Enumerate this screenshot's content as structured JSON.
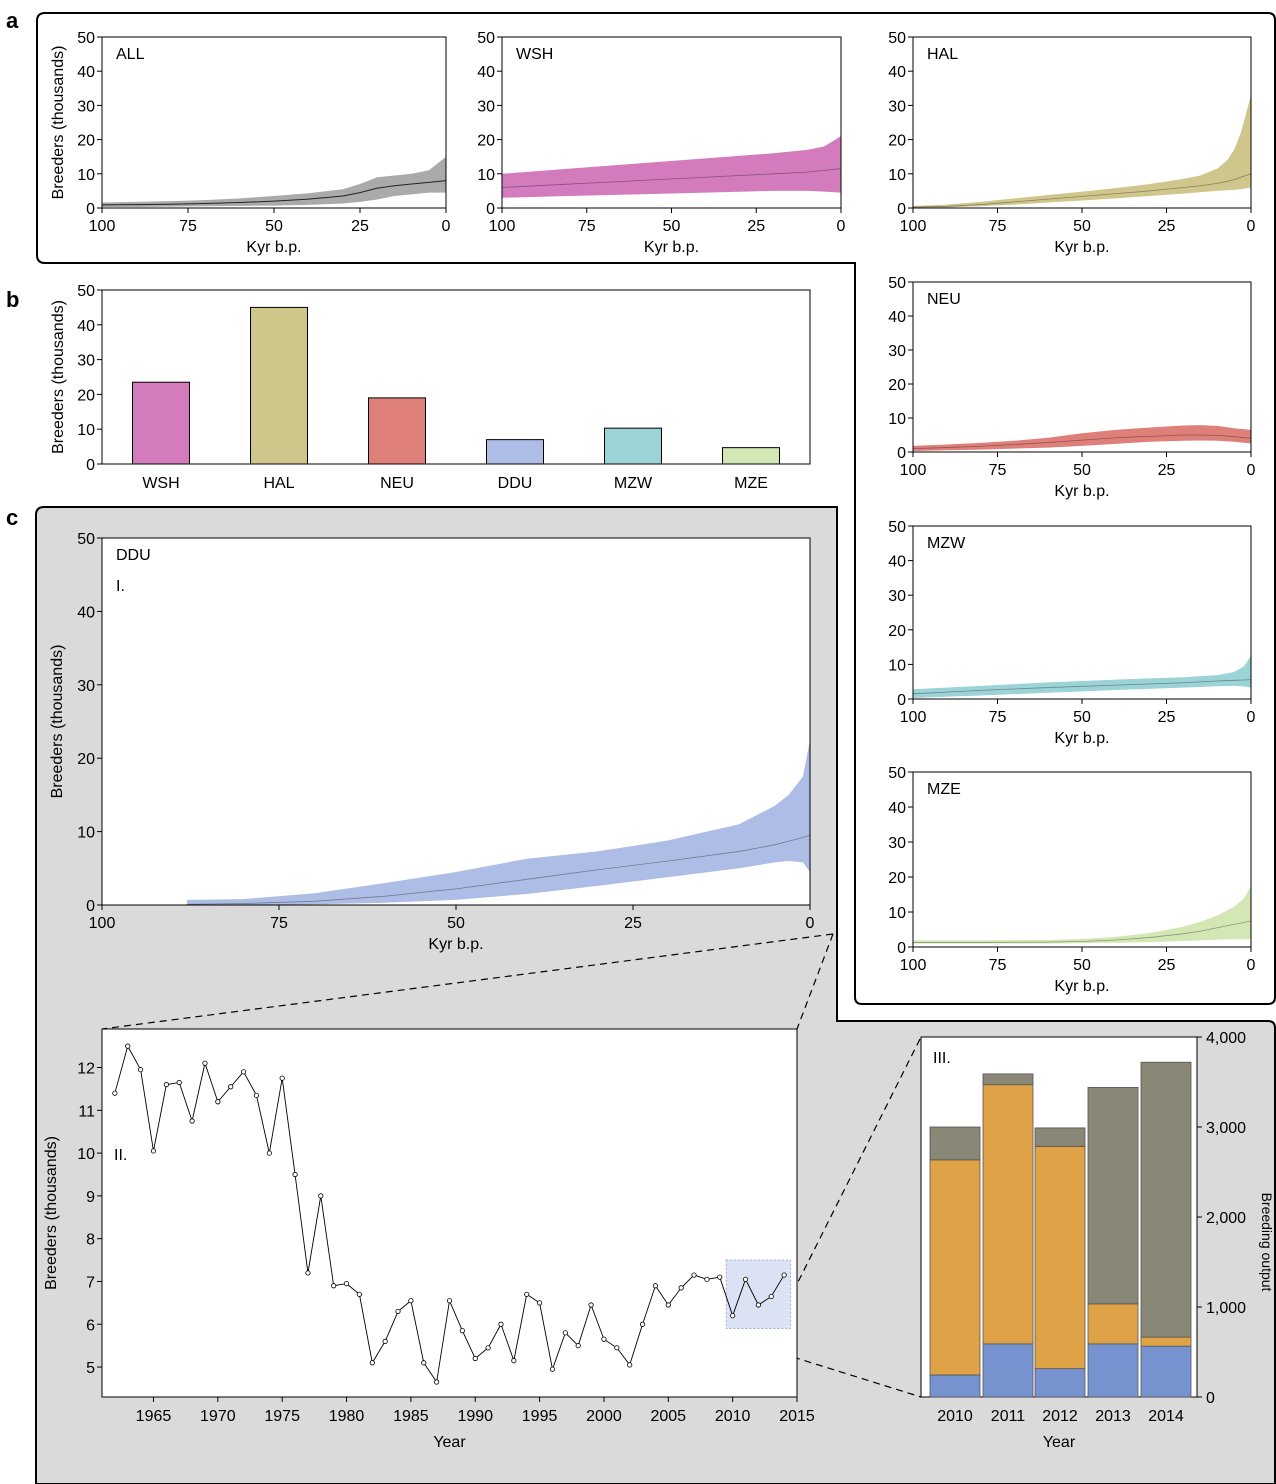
{
  "panel_letters": {
    "a": "a",
    "b": "b",
    "c": "c"
  },
  "colors": {
    "ALL": "#aaaaaa",
    "ALL_line": "#222222",
    "WSH": "#d37bbd",
    "HAL": "#cfc68c",
    "NEU": "#df7f79",
    "DDU": "#aebde6",
    "MZW": "#9bd3d6",
    "MZE": "#d3e7b4",
    "shade": "#dadada",
    "bar_grey": "#898776",
    "bar_orange": "#dfa246",
    "bar_blue": "#7793cf"
  },
  "chart_data": [
    {
      "id": "ALL",
      "type": "area",
      "panel": "a",
      "label": "ALL",
      "xlabel": "Kyr b.p.",
      "ylabel": "Breeders (thousands)",
      "xlim": [
        100,
        0
      ],
      "ylim": [
        0,
        50
      ],
      "xticks": [
        "100",
        "75",
        "50",
        "25",
        "0"
      ],
      "yticks": [
        "0",
        "10",
        "20",
        "30",
        "40",
        "50"
      ],
      "x": [
        100,
        90,
        80,
        70,
        60,
        50,
        40,
        30,
        25,
        20,
        15,
        10,
        5,
        0
      ],
      "median": [
        0.9,
        1.0,
        1.1,
        1.3,
        1.6,
        2.0,
        2.6,
        3.5,
        4.5,
        5.8,
        6.5,
        7.0,
        7.5,
        8.0
      ],
      "lower": [
        0.3,
        0.3,
        0.4,
        0.5,
        0.6,
        0.7,
        0.9,
        1.3,
        1.8,
        2.5,
        3.5,
        4.0,
        4.5,
        4.5
      ],
      "upper": [
        1.6,
        1.8,
        2.0,
        2.3,
        2.8,
        3.5,
        4.3,
        5.5,
        7.0,
        9.0,
        9.5,
        10.0,
        11.0,
        15.0
      ]
    },
    {
      "id": "WSH",
      "type": "area",
      "panel": "a",
      "label": "WSH",
      "xlabel": "Kyr b.p.",
      "ylabel": "",
      "xlim": [
        100,
        0
      ],
      "ylim": [
        0,
        50
      ],
      "xticks": [
        "100",
        "75",
        "50",
        "25",
        "0"
      ],
      "yticks": [
        "0",
        "10",
        "20",
        "30",
        "40",
        "50"
      ],
      "x": [
        100,
        80,
        60,
        40,
        20,
        10,
        5,
        0
      ],
      "median": [
        6.0,
        7.0,
        8.0,
        9.0,
        10.0,
        10.5,
        11.0,
        11.5
      ],
      "lower": [
        3.0,
        3.5,
        4.0,
        4.5,
        5.0,
        5.0,
        4.8,
        4.5
      ],
      "upper": [
        10.0,
        11.5,
        13.0,
        14.5,
        16.0,
        17.0,
        18.0,
        21.0
      ]
    },
    {
      "id": "HAL",
      "type": "area",
      "panel": "a",
      "label": "HAL",
      "xlabel": "Kyr b.p.",
      "ylabel": "",
      "xlim": [
        100,
        0
      ],
      "ylim": [
        0,
        50
      ],
      "xticks": [
        "100",
        "75",
        "50",
        "25",
        "0"
      ],
      "yticks": [
        "0",
        "10",
        "20",
        "30",
        "40",
        "50"
      ],
      "x": [
        100,
        90,
        80,
        70,
        60,
        50,
        40,
        30,
        20,
        15,
        10,
        7,
        5,
        3,
        0
      ],
      "median": [
        0.3,
        0.5,
        1.0,
        1.8,
        2.6,
        3.4,
        4.2,
        5.0,
        6.0,
        6.5,
        7.2,
        7.8,
        8.3,
        9.0,
        10.0
      ],
      "lower": [
        0.1,
        0.2,
        0.5,
        1.0,
        1.6,
        2.2,
        2.8,
        3.5,
        4.2,
        4.6,
        5.0,
        5.2,
        5.3,
        5.5,
        6.0
      ],
      "upper": [
        0.6,
        1.0,
        1.8,
        2.8,
        3.8,
        4.8,
        5.8,
        7.0,
        8.5,
        9.5,
        11.5,
        14.0,
        17.0,
        22.0,
        33.0
      ]
    },
    {
      "id": "NEU",
      "type": "area",
      "panel": "a",
      "label": "NEU",
      "xlabel": "Kyr b.p.",
      "ylabel": "",
      "xlim": [
        100,
        0
      ],
      "ylim": [
        0,
        50
      ],
      "xticks": [
        "100",
        "75",
        "50",
        "25",
        "0"
      ],
      "yticks": [
        "0",
        "10",
        "20",
        "30",
        "40",
        "50"
      ],
      "x": [
        100,
        90,
        80,
        70,
        60,
        50,
        40,
        30,
        20,
        15,
        10,
        5,
        0
      ],
      "median": [
        1.0,
        1.3,
        1.7,
        2.2,
        2.8,
        3.5,
        4.2,
        4.6,
        5.0,
        5.0,
        4.9,
        4.5,
        4.0
      ],
      "lower": [
        0.3,
        0.5,
        0.7,
        1.0,
        1.3,
        1.8,
        2.4,
        3.0,
        3.3,
        3.4,
        3.3,
        3.0,
        2.5
      ],
      "upper": [
        1.8,
        2.2,
        2.7,
        3.3,
        4.2,
        5.5,
        6.5,
        7.2,
        7.8,
        7.9,
        7.7,
        7.0,
        6.5
      ]
    },
    {
      "id": "MZW",
      "type": "area",
      "panel": "a",
      "label": "MZW",
      "xlabel": "Kyr b.p.",
      "ylabel": "",
      "xlim": [
        100,
        0
      ],
      "ylim": [
        0,
        50
      ],
      "xticks": [
        "100",
        "75",
        "50",
        "25",
        "0"
      ],
      "yticks": [
        "0",
        "10",
        "20",
        "30",
        "40",
        "50"
      ],
      "x": [
        100,
        80,
        60,
        40,
        20,
        10,
        5,
        2,
        0
      ],
      "median": [
        1.5,
        2.5,
        3.3,
        4.0,
        4.7,
        5.2,
        5.4,
        5.5,
        5.6
      ],
      "lower": [
        0.3,
        1.0,
        1.8,
        2.6,
        3.3,
        3.7,
        3.8,
        3.6,
        3.3
      ],
      "upper": [
        2.8,
        3.8,
        4.8,
        5.6,
        6.3,
        6.9,
        7.8,
        9.5,
        12.5
      ]
    },
    {
      "id": "MZE",
      "type": "area",
      "panel": "a",
      "label": "MZE",
      "xlabel": "Kyr b.p.",
      "ylabel": "",
      "xlim": [
        100,
        0
      ],
      "ylim": [
        0,
        50
      ],
      "xticks": [
        "100",
        "75",
        "50",
        "25",
        "0"
      ],
      "yticks": [
        "0",
        "10",
        "20",
        "30",
        "40",
        "50"
      ],
      "x": [
        100,
        80,
        60,
        50,
        40,
        30,
        20,
        15,
        10,
        5,
        2,
        0
      ],
      "median": [
        1.3,
        1.3,
        1.4,
        1.6,
        2.0,
        2.7,
        3.8,
        4.5,
        5.5,
        6.5,
        7.0,
        7.5
      ],
      "lower": [
        1.0,
        1.0,
        1.0,
        1.1,
        1.2,
        1.4,
        1.7,
        1.9,
        2.1,
        2.2,
        2.2,
        2.2
      ],
      "upper": [
        1.9,
        1.9,
        2.0,
        2.3,
        2.9,
        4.0,
        5.8,
        7.2,
        9.0,
        11.5,
        14.0,
        17.5
      ]
    },
    {
      "id": "b",
      "type": "bar",
      "panel": "b",
      "ylabel": "Breeders (thousands)",
      "ylim": [
        0,
        50
      ],
      "yticks": [
        "0",
        "10",
        "20",
        "30",
        "40",
        "50"
      ],
      "categories": [
        "WSH",
        "HAL",
        "NEU",
        "DDU",
        "MZW",
        "MZE"
      ],
      "values": [
        23.5,
        45,
        19,
        7,
        10.3,
        4.7
      ]
    },
    {
      "id": "DDU",
      "type": "area",
      "panel": "c",
      "label": "DDU",
      "sublabel": "I.",
      "xlabel": "Kyr b.p.",
      "ylabel": "Breeders (thousands)",
      "xlim": [
        100,
        0
      ],
      "ylim": [
        0,
        50
      ],
      "xticks": [
        "100",
        "75",
        "50",
        "25",
        "0"
      ],
      "yticks": [
        "0",
        "10",
        "20",
        "30",
        "40",
        "50"
      ],
      "x": [
        88,
        80,
        70,
        60,
        50,
        40,
        30,
        20,
        10,
        5,
        3,
        1,
        0
      ],
      "median": [
        0.1,
        0.2,
        0.5,
        1.2,
        2.2,
        3.5,
        4.8,
        6.0,
        7.3,
        8.2,
        8.7,
        9.2,
        9.5
      ],
      "lower": [
        0.0,
        0.0,
        0.1,
        0.3,
        0.7,
        1.5,
        2.6,
        3.8,
        5.0,
        5.8,
        6.0,
        5.8,
        4.5
      ],
      "upper": [
        0.7,
        0.8,
        1.6,
        3.0,
        4.5,
        6.3,
        7.3,
        8.8,
        11.0,
        13.5,
        15.0,
        17.5,
        22.5
      ]
    },
    {
      "id": "II",
      "type": "line",
      "panel": "c",
      "sublabel": "II.",
      "xlabel": "Year",
      "ylabel": "Breeders (thousands)",
      "xlim": [
        1961,
        2015
      ],
      "ylim": [
        4.3,
        12.9
      ],
      "xticks": [
        "1965",
        "1970",
        "1975",
        "1980",
        "1985",
        "1990",
        "1995",
        "2000",
        "2005",
        "2010",
        "2015"
      ],
      "yticks": [
        "5",
        "6",
        "7",
        "8",
        "9",
        "10",
        "11",
        "12"
      ],
      "x": [
        1962,
        1963,
        1964,
        1965,
        1966,
        1967,
        1968,
        1969,
        1970,
        1971,
        1972,
        1973,
        1974,
        1975,
        1976,
        1977,
        1978,
        1979,
        1980,
        1981,
        1982,
        1983,
        1984,
        1985,
        1986,
        1987,
        1988,
        1989,
        1990,
        1991,
        1992,
        1993,
        1994,
        1995,
        1996,
        1997,
        1998,
        1999,
        2000,
        2001,
        2002,
        2003,
        2004,
        2005,
        2006,
        2007,
        2008,
        2009,
        2010,
        2011,
        2012,
        2013,
        2014
      ],
      "values": [
        11.4,
        12.5,
        11.95,
        10.05,
        11.6,
        11.65,
        10.75,
        12.1,
        11.2,
        11.55,
        11.9,
        11.35,
        10.0,
        11.75,
        9.5,
        7.2,
        9.0,
        6.9,
        6.95,
        6.7,
        5.1,
        5.6,
        6.3,
        6.55,
        5.1,
        4.65,
        6.55,
        5.85,
        5.2,
        5.45,
        6.0,
        5.15,
        6.7,
        6.5,
        4.95,
        5.8,
        5.5,
        6.45,
        5.65,
        5.45,
        5.05,
        6.0,
        6.9,
        6.45,
        6.85,
        7.15,
        7.05,
        7.1,
        6.2,
        7.05,
        6.45,
        6.65,
        7.15
      ],
      "highlight": {
        "x": [
          2009.5,
          2014.5
        ],
        "y": [
          5.9,
          7.5
        ]
      }
    },
    {
      "id": "III",
      "type": "bar",
      "stacked": true,
      "panel": "c",
      "sublabel": "III.",
      "xlabel": "Year",
      "ylabel": "Breeding output",
      "ylim": [
        0,
        4000
      ],
      "yticks": [
        "0",
        "1,000",
        "2,000",
        "3,000",
        "4,000"
      ],
      "categories": [
        "2010",
        "2011",
        "2012",
        "2013",
        "2014"
      ],
      "series": [
        {
          "values": [
            245,
            590,
            315,
            590,
            565
          ]
        },
        {
          "values": [
            2390,
            2880,
            2470,
            445,
            100
          ]
        },
        {
          "values": [
            365,
            120,
            205,
            2405,
            3055
          ]
        }
      ]
    }
  ]
}
